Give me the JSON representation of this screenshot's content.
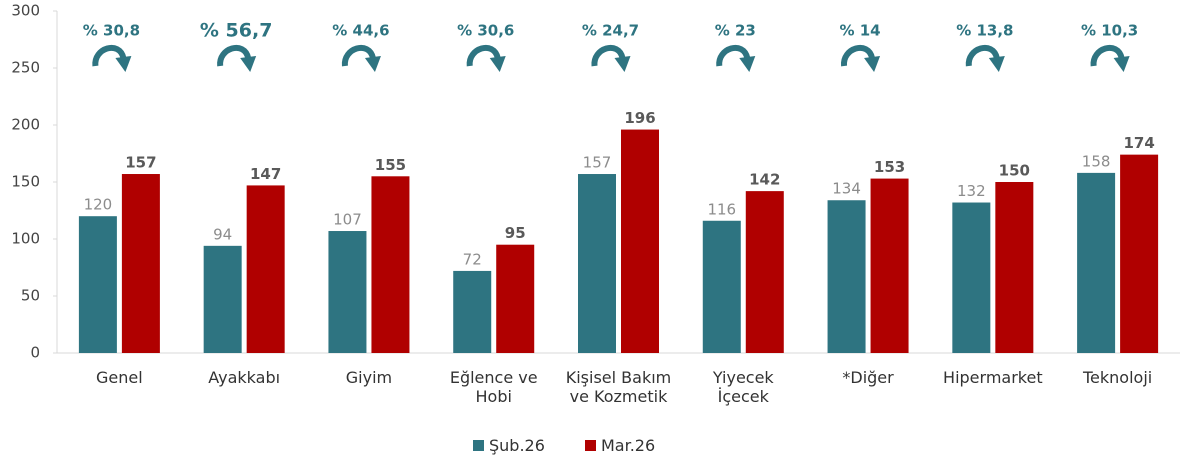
{
  "chart_data": {
    "type": "bar",
    "categories": [
      "Genel",
      "Ayakkabı",
      "Giyim",
      "Eğlence ve Hobi",
      "Kişisel Bakım ve Kozmetik",
      "Yiyecek İçecek",
      "*Diğer",
      "Hipermarket",
      "Teknoloji"
    ],
    "series": [
      {
        "name": "Şub.26",
        "color": "#2e7481",
        "values": [
          120,
          94,
          107,
          72,
          157,
          116,
          134,
          132,
          158
        ]
      },
      {
        "name": "Mar.26",
        "color": "#b00000",
        "values": [
          157,
          147,
          155,
          95,
          196,
          142,
          153,
          150,
          174
        ]
      }
    ],
    "annotations": [
      "% 30,8",
      "% 56,7",
      "% 44,6",
      "% 30,6",
      "% 24,7",
      "% 23",
      "% 14",
      "% 13,8",
      "% 10,3"
    ],
    "ylim": [
      0,
      300
    ],
    "yticks": [
      0,
      50,
      100,
      150,
      200,
      250,
      300
    ],
    "grid": false,
    "legend": "bottom"
  }
}
